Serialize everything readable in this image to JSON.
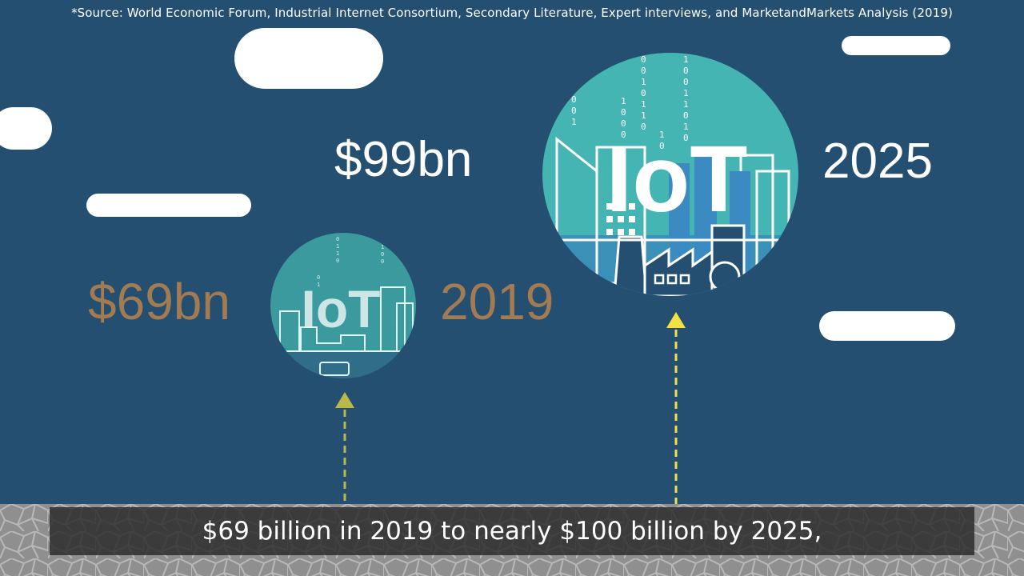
{
  "source_note": "*Source: World Economic Forum, Industrial Internet Consortium, Secondary Literature, Expert interviews, and MarketandMarkets Analysis (2019)",
  "markets": [
    {
      "value": "$69bn",
      "year": "2019",
      "badge": "IoT"
    },
    {
      "value": "$99bn",
      "year": "2025",
      "badge": "IoT"
    }
  ],
  "caption": "$69 billion in 2019 to nearly $100 billion by 2025,",
  "colors": {
    "background": "#254f70",
    "highlight_text": "#ffffff",
    "muted_text": "#a37b52",
    "badge_fill": "#45b5b3",
    "arrow_small": "#b9b94a",
    "arrow_large": "#f2e045"
  }
}
